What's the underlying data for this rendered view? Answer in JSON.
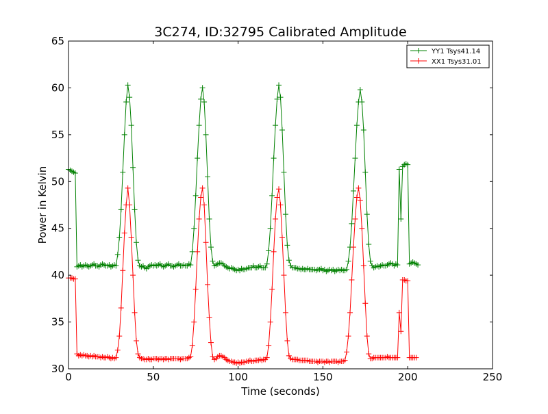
{
  "chart_data": {
    "type": "line",
    "title": "3C274, ID:32795 Calibrated Amplitude",
    "xlabel": "Time (seconds)",
    "ylabel": "Power in Kelvin",
    "xlim": [
      0,
      250
    ],
    "ylim": [
      30,
      65
    ],
    "x_ticks": [
      0,
      50,
      100,
      150,
      200,
      250
    ],
    "y_ticks": [
      30,
      35,
      40,
      45,
      50,
      55,
      60,
      65
    ],
    "grid": false,
    "legend_position": "top-right",
    "marker": "plus",
    "sample_interval": 1,
    "series": [
      {
        "name": "YY1 Tsys41.14",
        "color": "#008000",
        "segments": [
          {
            "x_start": 0,
            "values": [
              51.3,
              51.2,
              51.1,
              51.0,
              50.9,
              40.9,
              41.0,
              41.1,
              40.9,
              41.0,
              41.1,
              41.0,
              40.9,
              41.0,
              41.1,
              41.2,
              41.0,
              41.0,
              40.9,
              41.1,
              41.2,
              41.1,
              41.0,
              41.0,
              41.1,
              40.9,
              41.0,
              41.1,
              41.0,
              42.2,
              44.0,
              47.0,
              51.0,
              55.0,
              58.5,
              60.3,
              59.0,
              56.0,
              51.5,
              47.0,
              43.5,
              41.6,
              41.0,
              40.9,
              41.0,
              40.8,
              40.7,
              40.9,
              41.0,
              41.1,
              41.0,
              41.1,
              41.0,
              41.1,
              41.2,
              41.0,
              40.9,
              41.0,
              41.1,
              41.2,
              41.0,
              41.0,
              40.9,
              41.0,
              41.1,
              41.2,
              41.0,
              41.0,
              41.1,
              41.0,
              41.0,
              41.2,
              41.1,
              42.5,
              45.0,
              48.5,
              52.5,
              56.0,
              58.8,
              60.0,
              58.5,
              55.0,
              50.5,
              46.0,
              43.0,
              41.5,
              41.0,
              41.1,
              41.2,
              41.3,
              41.3,
              41.2,
              41.0,
              40.9,
              40.8,
              40.7,
              40.8,
              40.7,
              40.6,
              40.5,
              40.6,
              40.5,
              40.7,
              40.6,
              40.6,
              40.7,
              40.8,
              40.8,
              40.8,
              41.0,
              40.8,
              40.8,
              40.9,
              41.0,
              40.8,
              40.8,
              40.8,
              41.2,
              42.6,
              45.0,
              48.5,
              52.5,
              56.0,
              58.8,
              60.3,
              59.0,
              55.5,
              51.0,
              46.5,
              43.2,
              41.6,
              41.0,
              40.8,
              40.8,
              40.8,
              40.7,
              40.7,
              40.6,
              40.7,
              40.6,
              40.6,
              40.7,
              40.6,
              40.6,
              40.6,
              40.6,
              40.5,
              40.6,
              40.6,
              40.7,
              40.5,
              40.6,
              40.4,
              40.5,
              40.6,
              40.5,
              40.6,
              40.4,
              40.5,
              40.6,
              40.5,
              40.6,
              40.5,
              40.5,
              40.6,
              41.5,
              43.0,
              45.5,
              49.0,
              52.5,
              56.0,
              58.5,
              59.8,
              58.5,
              55.5,
              51.0,
              46.5,
              43.3,
              41.5,
              41.0,
              40.8,
              40.9,
              41.0,
              40.9,
              41.0,
              41.1,
              41.0,
              41.0,
              41.1,
              41.2,
              41.3,
              41.2,
              41.0,
              41.2,
              41.1,
              51.3,
              46.0,
              51.6,
              51.8,
              51.9,
              51.8,
              41.2,
              41.3,
              41.4,
              41.3,
              41.2,
              41.1
            ]
          }
        ]
      },
      {
        "name": "XX1 Tsys31.01",
        "color": "#ff0000",
        "segments": [
          {
            "x_start": 0,
            "values": [
              39.7,
              39.7,
              39.7,
              39.6,
              39.6,
              31.6,
              31.4,
              31.5,
              31.4,
              31.5,
              31.4,
              31.4,
              31.3,
              31.4,
              31.3,
              31.4,
              31.3,
              31.3,
              31.3,
              31.2,
              31.3,
              31.2,
              31.2,
              31.3,
              31.2,
              31.1,
              31.2,
              31.1,
              31.2,
              32.0,
              33.5,
              36.5,
              40.5,
              44.5,
              47.5,
              49.3,
              47.5,
              44.0,
              40.0,
              36.0,
              33.0,
              31.6,
              31.2,
              31.1,
              31.1,
              31.0,
              31.0,
              31.1,
              31.0,
              31.0,
              31.1,
              31.1,
              31.1,
              31.0,
              31.1,
              31.1,
              31.0,
              31.1,
              31.1,
              31.0,
              31.1,
              31.1,
              31.1,
              31.1,
              31.1,
              31.1,
              31.0,
              31.1,
              31.1,
              31.1,
              31.1,
              31.2,
              31.3,
              32.5,
              35.0,
              38.5,
              42.5,
              46.0,
              48.3,
              49.3,
              47.5,
              43.5,
              39.0,
              35.5,
              32.8,
              31.3,
              31.0,
              31.1,
              31.3,
              31.4,
              31.4,
              31.3,
              31.2,
              31.0,
              30.9,
              30.8,
              30.8,
              30.7,
              30.7,
              30.6,
              30.7,
              30.6,
              30.7,
              30.7,
              30.7,
              30.8,
              30.8,
              30.9,
              30.8,
              30.8,
              30.9,
              30.9,
              30.9,
              31.0,
              30.9,
              31.0,
              31.0,
              31.2,
              32.5,
              35.0,
              38.5,
              42.5,
              46.0,
              48.3,
              49.2,
              47.5,
              44.0,
              40.0,
              36.0,
              33.0,
              31.4,
              31.1,
              31.0,
              31.0,
              31.0,
              31.0,
              30.9,
              30.9,
              30.9,
              30.9,
              30.9,
              30.9,
              30.8,
              30.8,
              30.8,
              30.8,
              30.8,
              30.7,
              30.8,
              30.8,
              30.8,
              30.7,
              30.8,
              30.8,
              30.7,
              30.8,
              30.8,
              30.8,
              30.8,
              30.7,
              30.8,
              30.8,
              30.8,
              30.9,
              31.8,
              33.5,
              36.0,
              39.5,
              43.0,
              46.0,
              48.3,
              49.3,
              48.0,
              45.0,
              41.0,
              37.0,
              33.5,
              31.6,
              31.1,
              31.1,
              31.2,
              31.2,
              31.2,
              31.2,
              31.2,
              31.2,
              31.2,
              31.2,
              31.3,
              31.2,
              31.2,
              31.2,
              31.2,
              31.2,
              31.2,
              36.0,
              34.0,
              39.5,
              39.5,
              39.4,
              39.4,
              31.2,
              31.2,
              31.2,
              31.2,
              31.2
            ]
          }
        ]
      }
    ]
  }
}
